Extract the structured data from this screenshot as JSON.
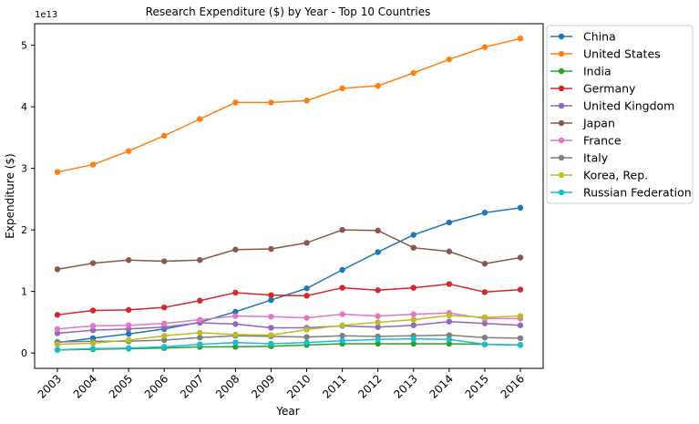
{
  "chart_data": {
    "type": "line",
    "title": "Research Expenditure ($) by Year - Top 10 Countries",
    "xlabel": "Year",
    "ylabel": "Expenditure ($)",
    "y_offset_label": "1e13",
    "categories": [
      "2003",
      "2004",
      "2005",
      "2006",
      "2007",
      "2008",
      "2009",
      "2010",
      "2011",
      "2012",
      "2013",
      "2014",
      "2015",
      "2016"
    ],
    "ylim": [
      -2500000000000.0,
      53500000000000.0
    ],
    "yticks": [
      0,
      10000000000000.0,
      20000000000000.0,
      30000000000000.0,
      40000000000000.0,
      50000000000000.0
    ],
    "ytick_labels": [
      "0",
      "1",
      "2",
      "3",
      "4",
      "5"
    ],
    "legend_position": "outside-right",
    "series": [
      {
        "name": "China",
        "color": "#1f77b4",
        "values": [
          1700000000000.0,
          2400000000000.0,
          3100000000000.0,
          3900000000000.0,
          5000000000000.0,
          6700000000000.0,
          8600000000000.0,
          10500000000000.0,
          13500000000000.0,
          16400000000000.0,
          19200000000000.0,
          21200000000000.0,
          22800000000000.0,
          23600000000000.0
        ]
      },
      {
        "name": "United States",
        "color": "#ff7f0e",
        "values": [
          29400000000000.0,
          30600000000000.0,
          32800000000000.0,
          35300000000000.0,
          38000000000000.0,
          40700000000000.0,
          40700000000000.0,
          41000000000000.0,
          43000000000000.0,
          43400000000000.0,
          45500000000000.0,
          47700000000000.0,
          49700000000000.0,
          51100000000000.0
        ]
      },
      {
        "name": "India",
        "color": "#2ca02c",
        "values": [
          500000000000.0,
          600000000000.0,
          700000000000.0,
          800000000000.0,
          1000000000000.0,
          1000000000000.0,
          1100000000000.0,
          1300000000000.0,
          1500000000000.0,
          1500000000000.0,
          1500000000000.0,
          1500000000000.0,
          1400000000000.0,
          1300000000000.0
        ]
      },
      {
        "name": "Germany",
        "color": "#d62728",
        "values": [
          6200000000000.0,
          6900000000000.0,
          7000000000000.0,
          7400000000000.0,
          8500000000000.0,
          9800000000000.0,
          9400000000000.0,
          9300000000000.0,
          10600000000000.0,
          10200000000000.0,
          10600000000000.0,
          11200000000000.0,
          9900000000000.0,
          10300000000000.0
        ]
      },
      {
        "name": "United Kingdom",
        "color": "#9467bd",
        "values": [
          3200000000000.0,
          3700000000000.0,
          3900000000000.0,
          4200000000000.0,
          4900000000000.0,
          4700000000000.0,
          4100000000000.0,
          4100000000000.0,
          4400000000000.0,
          4200000000000.0,
          4500000000000.0,
          5100000000000.0,
          4800000000000.0,
          4500000000000.0
        ]
      },
      {
        "name": "Japan",
        "color": "#8c564b",
        "values": [
          13600000000000.0,
          14600000000000.0,
          15100000000000.0,
          14900000000000.0,
          15100000000000.0,
          16800000000000.0,
          16900000000000.0,
          17900000000000.0,
          20000000000000.0,
          19900000000000.0,
          17100000000000.0,
          16500000000000.0,
          14500000000000.0,
          15500000000000.0
        ]
      },
      {
        "name": "France",
        "color": "#e377c2",
        "values": [
          3900000000000.0,
          4400000000000.0,
          4500000000000.0,
          4800000000000.0,
          5400000000000.0,
          6000000000000.0,
          5900000000000.0,
          5700000000000.0,
          6300000000000.0,
          6000000000000.0,
          6300000000000.0,
          6500000000000.0,
          5600000000000.0,
          5600000000000.0
        ]
      },
      {
        "name": "Italy",
        "color": "#7f7f7f",
        "values": [
          1800000000000.0,
          1900000000000.0,
          1900000000000.0,
          2100000000000.0,
          2500000000000.0,
          2800000000000.0,
          2700000000000.0,
          2600000000000.0,
          2800000000000.0,
          2700000000000.0,
          2800000000000.0,
          2900000000000.0,
          2500000000000.0,
          2400000000000.0
        ]
      },
      {
        "name": "Korea, Rep.",
        "color": "#bcbd22",
        "values": [
          1400000000000.0,
          1600000000000.0,
          2100000000000.0,
          2800000000000.0,
          3300000000000.0,
          3000000000000.0,
          2900000000000.0,
          3800000000000.0,
          4500000000000.0,
          5000000000000.0,
          5400000000000.0,
          6100000000000.0,
          5800000000000.0,
          6000000000000.0
        ]
      },
      {
        "name": "Russian Federation",
        "color": "#17becf",
        "values": [
          500000000000.0,
          700000000000.0,
          800000000000.0,
          1000000000000.0,
          1400000000000.0,
          1700000000000.0,
          1500000000000.0,
          1700000000000.0,
          2000000000000.0,
          2200000000000.0,
          2300000000000.0,
          2200000000000.0,
          1400000000000.0,
          1300000000000.0
        ]
      }
    ]
  }
}
